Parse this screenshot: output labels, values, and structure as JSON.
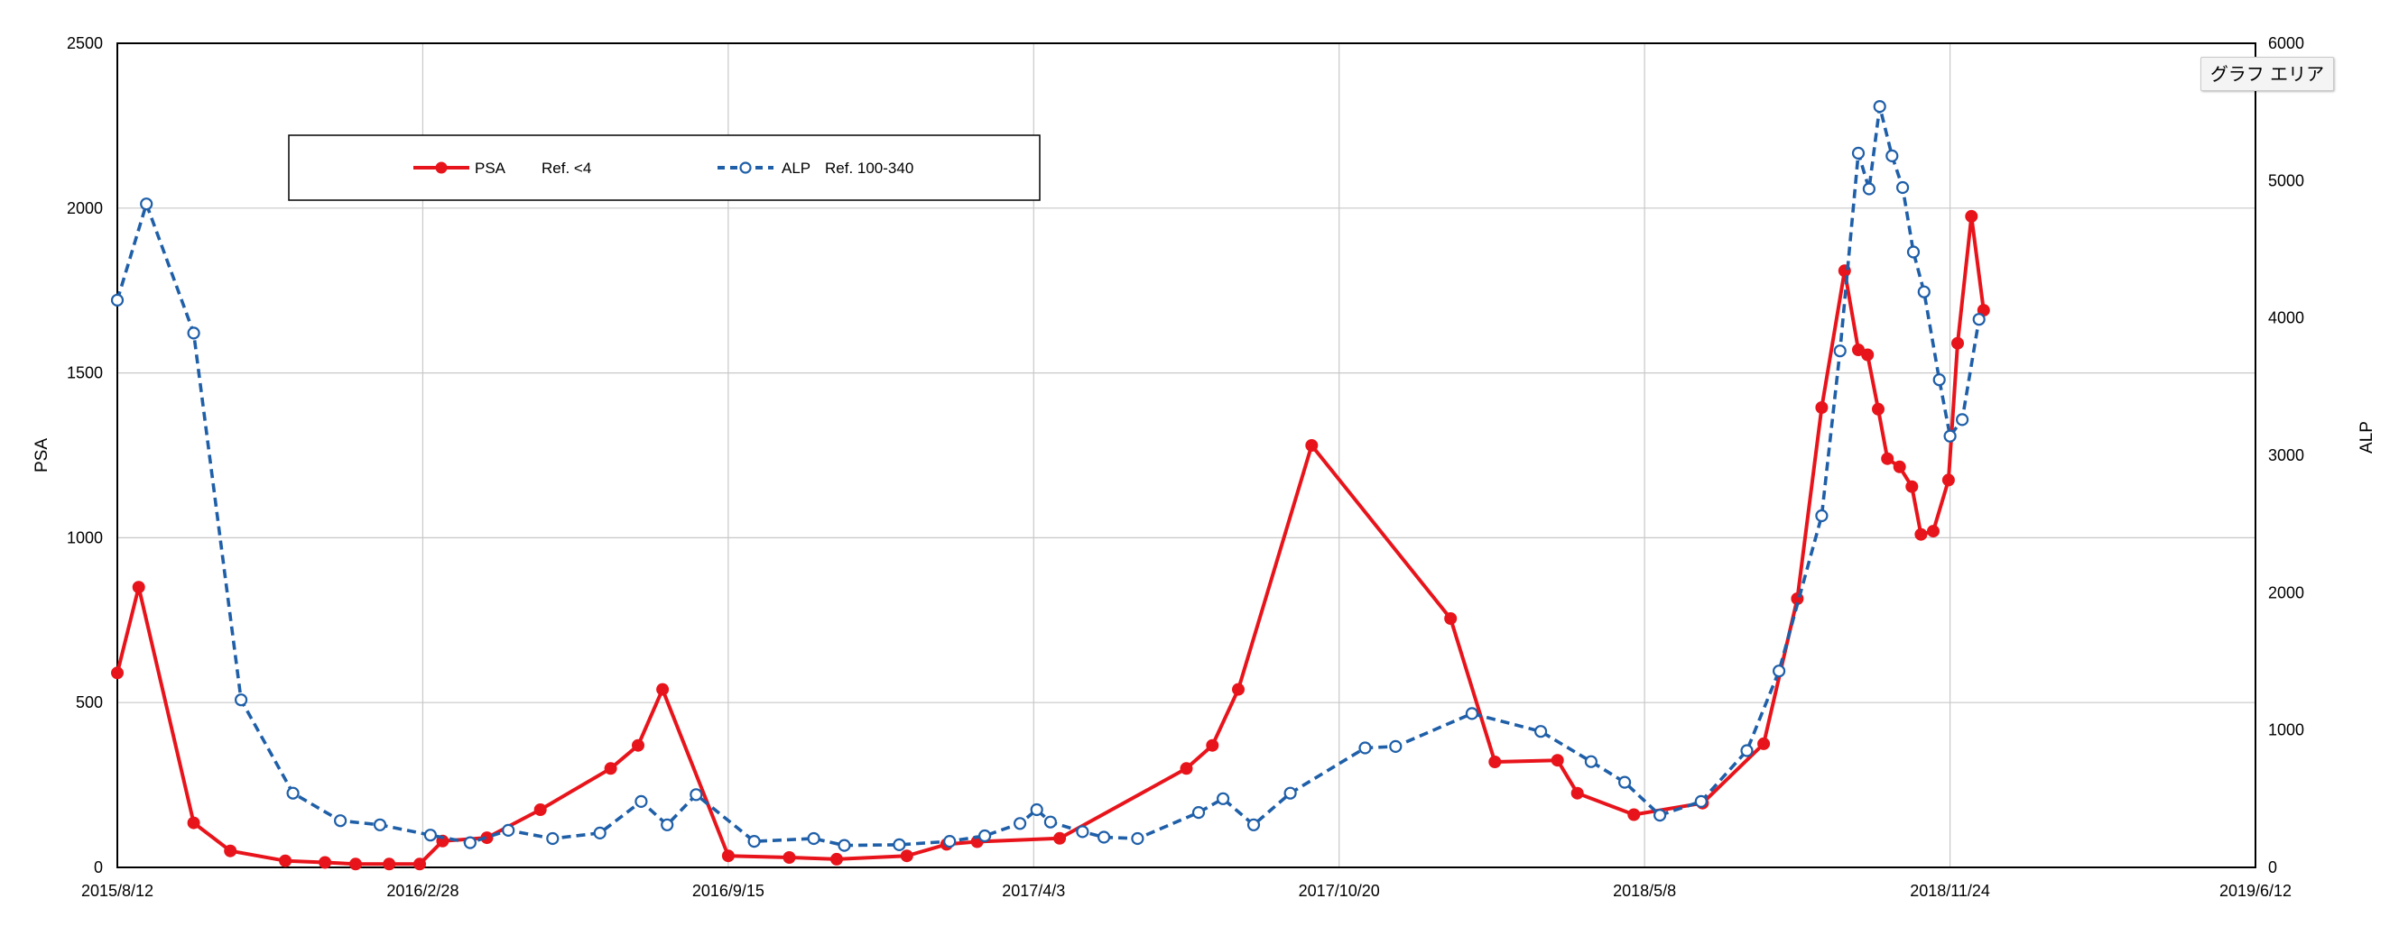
{
  "tooltip": {
    "text": "グラフ エリア"
  },
  "chart_data": {
    "type": "line",
    "title": "",
    "xlabel": "",
    "ylabel": "PSA",
    "y2label": "ALP",
    "xlim": [
      "2015-08-12",
      "2019-06-12"
    ],
    "ylim": [
      0,
      2500
    ],
    "y2lim": [
      0,
      6000
    ],
    "x_ticks": [
      "2015/8/12",
      "2016/2/28",
      "2016/9/15",
      "2017/4/3",
      "2017/10/20",
      "2018/5/8",
      "2018/11/24",
      "2019/6/12"
    ],
    "y_ticks": [
      "0",
      "500",
      "1000",
      "1500",
      "2000",
      "2500"
    ],
    "y2_ticks": [
      "0",
      "1000",
      "2000",
      "3000",
      "4000",
      "5000",
      "6000"
    ],
    "grid": true,
    "legend_position": "top-left",
    "series": [
      {
        "name": "PSA",
        "legend_ref": "Ref. <4",
        "axis": "left",
        "color": "#e8141b",
        "style": "solid",
        "marker": "filled-circle",
        "points": [
          [
            "2015-08-12",
            590
          ],
          [
            "2015-08-26",
            850
          ],
          [
            "2015-10-01",
            135
          ],
          [
            "2015-10-25",
            50
          ],
          [
            "2015-11-30",
            20
          ],
          [
            "2015-12-26",
            15
          ],
          [
            "2016-01-15",
            10
          ],
          [
            "2016-02-06",
            10
          ],
          [
            "2016-02-26",
            10
          ],
          [
            "2016-03-12",
            80
          ],
          [
            "2016-04-10",
            90
          ],
          [
            "2016-05-15",
            175
          ],
          [
            "2016-06-30",
            300
          ],
          [
            "2016-07-18",
            370
          ],
          [
            "2016-08-03",
            540
          ],
          [
            "2016-09-15",
            35
          ],
          [
            "2016-10-25",
            30
          ],
          [
            "2016-11-25",
            25
          ],
          [
            "2017-01-10",
            35
          ],
          [
            "2017-02-05",
            70
          ],
          [
            "2017-02-25",
            78
          ],
          [
            "2017-04-20",
            88
          ],
          [
            "2017-07-12",
            300
          ],
          [
            "2017-07-29",
            370
          ],
          [
            "2017-08-15",
            540
          ],
          [
            "2017-10-02",
            1280
          ],
          [
            "2018-01-01",
            755
          ],
          [
            "2018-01-30",
            320
          ],
          [
            "2018-03-12",
            325
          ],
          [
            "2018-03-25",
            225
          ],
          [
            "2018-05-01",
            160
          ],
          [
            "2018-06-15",
            195
          ],
          [
            "2018-07-25",
            375
          ],
          [
            "2018-08-16",
            815
          ],
          [
            "2018-09-01",
            1395
          ],
          [
            "2018-09-16",
            1810
          ],
          [
            "2018-09-25",
            1570
          ],
          [
            "2018-10-01",
            1555
          ],
          [
            "2018-10-08",
            1390
          ],
          [
            "2018-10-14",
            1240
          ],
          [
            "2018-10-22",
            1215
          ],
          [
            "2018-10-30",
            1155
          ],
          [
            "2018-11-05",
            1010
          ],
          [
            "2018-11-13",
            1020
          ],
          [
            "2018-11-23",
            1175
          ],
          [
            "2018-11-29",
            1590
          ],
          [
            "2018-12-08",
            1975
          ],
          [
            "2018-12-16",
            1690
          ]
        ]
      },
      {
        "name": "ALP",
        "legend_ref": "Ref. 100-340",
        "axis": "right",
        "color": "#1f5fa8",
        "style": "dashed",
        "marker": "open-circle",
        "points": [
          [
            "2015-08-12",
            4130
          ],
          [
            "2015-08-31",
            4830
          ],
          [
            "2015-10-01",
            3890
          ],
          [
            "2015-11-01",
            1220
          ],
          [
            "2015-12-05",
            540
          ],
          [
            "2016-01-05",
            340
          ],
          [
            "2016-01-31",
            310
          ],
          [
            "2016-03-04",
            235
          ],
          [
            "2016-03-30",
            180
          ],
          [
            "2016-04-24",
            270
          ],
          [
            "2016-05-23",
            210
          ],
          [
            "2016-06-23",
            250
          ],
          [
            "2016-07-20",
            480
          ],
          [
            "2016-08-06",
            310
          ],
          [
            "2016-08-25",
            530
          ],
          [
            "2016-10-02",
            190
          ],
          [
            "2016-11-10",
            210
          ],
          [
            "2016-11-30",
            160
          ],
          [
            "2017-01-05",
            165
          ],
          [
            "2017-02-07",
            190
          ],
          [
            "2017-03-02",
            230
          ],
          [
            "2017-03-25",
            320
          ],
          [
            "2017-04-05",
            420
          ],
          [
            "2017-04-14",
            330
          ],
          [
            "2017-05-05",
            260
          ],
          [
            "2017-05-19",
            220
          ],
          [
            "2017-06-10",
            210
          ],
          [
            "2017-07-20",
            400
          ],
          [
            "2017-08-05",
            500
          ],
          [
            "2017-08-25",
            310
          ],
          [
            "2017-09-18",
            540
          ],
          [
            "2017-11-06",
            870
          ],
          [
            "2017-11-26",
            880
          ],
          [
            "2018-01-15",
            1120
          ],
          [
            "2018-03-01",
            990
          ],
          [
            "2018-04-03",
            770
          ],
          [
            "2018-04-25",
            620
          ],
          [
            "2018-05-18",
            380
          ],
          [
            "2018-06-14",
            480
          ],
          [
            "2018-07-14",
            850
          ],
          [
            "2018-08-04",
            1430
          ],
          [
            "2018-09-01",
            2560
          ],
          [
            "2018-09-13",
            3760
          ],
          [
            "2018-09-25",
            5200
          ],
          [
            "2018-10-02",
            4940
          ],
          [
            "2018-10-09",
            5540
          ],
          [
            "2018-10-17",
            5180
          ],
          [
            "2018-10-24",
            4950
          ],
          [
            "2018-10-31",
            4480
          ],
          [
            "2018-11-07",
            4190
          ],
          [
            "2018-11-17",
            3550
          ],
          [
            "2018-11-24",
            3140
          ],
          [
            "2018-12-02",
            3260
          ],
          [
            "2018-12-13",
            3990
          ]
        ]
      }
    ]
  }
}
